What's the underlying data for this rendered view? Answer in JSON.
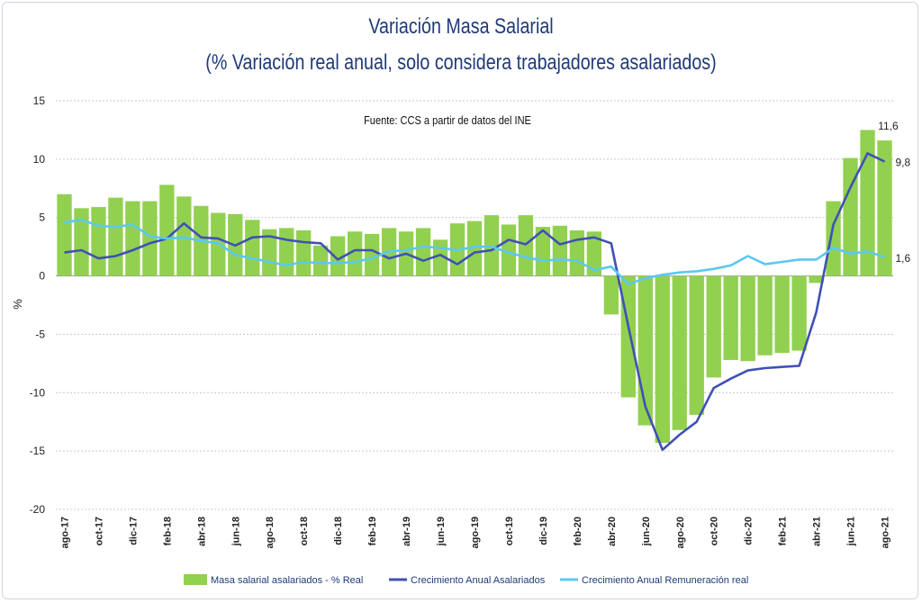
{
  "chart_data": {
    "type": "bar",
    "title": "Variación Masa Salarial",
    "subtitle": "(% Variación real anual, solo considera trabajadores asalariados)",
    "source_note": "Fuente: CCS a partir de datos del INE",
    "ylabel": "%",
    "ylim": [
      -20,
      15
    ],
    "yticks": [
      15,
      10,
      5,
      0,
      -5,
      -10,
      -15,
      -20
    ],
    "grid": true,
    "legend_position": "bottom",
    "x": [
      "ago-17",
      "sep-17",
      "oct-17",
      "nov-17",
      "dic-17",
      "ene-18",
      "feb-18",
      "mar-18",
      "abr-18",
      "may-18",
      "jun-18",
      "jul-18",
      "ago-18",
      "sep-18",
      "oct-18",
      "nov-18",
      "dic-18",
      "ene-19",
      "feb-19",
      "mar-19",
      "abr-19",
      "may-19",
      "jun-19",
      "jul-19",
      "ago-19",
      "sep-19",
      "oct-19",
      "nov-19",
      "dic-19",
      "ene-20",
      "feb-20",
      "mar-20",
      "abr-20",
      "may-20",
      "jun-20",
      "jul-20",
      "ago-20",
      "sep-20",
      "oct-20",
      "nov-20",
      "dic-20",
      "ene-21",
      "feb-21",
      "mar-21",
      "abr-21",
      "may-21",
      "jun-21",
      "jul-21",
      "ago-21"
    ],
    "xtick_labels": [
      "ago-17",
      "oct-17",
      "dic-17",
      "feb-18",
      "abr-18",
      "jun-18",
      "ago-18",
      "oct-18",
      "dic-18",
      "feb-19",
      "abr-19",
      "jun-19",
      "ago-19",
      "oct-19",
      "dic-19",
      "feb-20",
      "abr-20",
      "jun-20",
      "ago-20",
      "oct-20",
      "dic-20",
      "feb-21",
      "abr-21",
      "jun-21",
      "ago-21"
    ],
    "series": [
      {
        "name": "Masa salarial asalariados - % Real",
        "type": "bar",
        "color": "#92d050",
        "values": [
          7.0,
          5.8,
          5.9,
          6.7,
          6.4,
          6.4,
          7.8,
          6.8,
          6.0,
          5.4,
          5.3,
          4.8,
          4.0,
          4.1,
          3.9,
          2.6,
          3.4,
          3.8,
          3.6,
          4.1,
          3.8,
          4.1,
          3.1,
          4.5,
          4.7,
          5.2,
          4.4,
          5.2,
          4.2,
          4.3,
          3.9,
          3.8,
          -3.3,
          -10.4,
          -12.8,
          -14.3,
          -13.2,
          -11.9,
          -8.7,
          -7.2,
          -7.3,
          -6.8,
          -6.6,
          -6.4,
          -0.6,
          6.4,
          10.1,
          12.5,
          11.6
        ]
      },
      {
        "name": "Crecimiento Anual Asalariados",
        "type": "line",
        "color": "#3f51b5",
        "values": [
          2.0,
          2.2,
          1.5,
          1.7,
          2.2,
          2.8,
          3.2,
          4.5,
          3.3,
          3.2,
          2.6,
          3.3,
          3.4,
          3.1,
          2.9,
          2.8,
          1.4,
          2.2,
          2.2,
          1.5,
          1.9,
          1.3,
          1.8,
          1.0,
          2.0,
          2.2,
          3.1,
          2.7,
          3.9,
          2.7,
          3.1,
          3.3,
          2.8,
          -4.3,
          -11.2,
          -14.9,
          -13.6,
          -12.5,
          -9.6,
          -8.8,
          -8.1,
          -7.9,
          -7.8,
          -7.7,
          -3.1,
          4.4,
          7.6,
          10.5,
          9.8
        ]
      },
      {
        "name": "Crecimiento Anual Remuneración real",
        "type": "line",
        "color": "#5bc8f0",
        "values": [
          4.6,
          4.8,
          4.3,
          4.2,
          4.4,
          3.4,
          3.2,
          3.3,
          3.0,
          2.8,
          1.8,
          1.5,
          1.2,
          0.9,
          1.2,
          1.1,
          1.1,
          1.2,
          1.5,
          2.1,
          2.2,
          2.5,
          2.4,
          2.2,
          2.5,
          2.5,
          2.0,
          1.6,
          1.3,
          1.4,
          1.3,
          0.5,
          0.8,
          -0.7,
          -0.2,
          0.1,
          0.3,
          0.4,
          0.6,
          0.9,
          1.7,
          1.0,
          1.2,
          1.4,
          1.4,
          2.4,
          1.9,
          2.1,
          1.6
        ]
      }
    ],
    "annotations": [
      {
        "text": "11,6",
        "series": 0,
        "index": 48
      },
      {
        "text": "9,8",
        "series": 1,
        "index": 48
      },
      {
        "text": "1,6",
        "series": 2,
        "index": 48
      }
    ]
  }
}
